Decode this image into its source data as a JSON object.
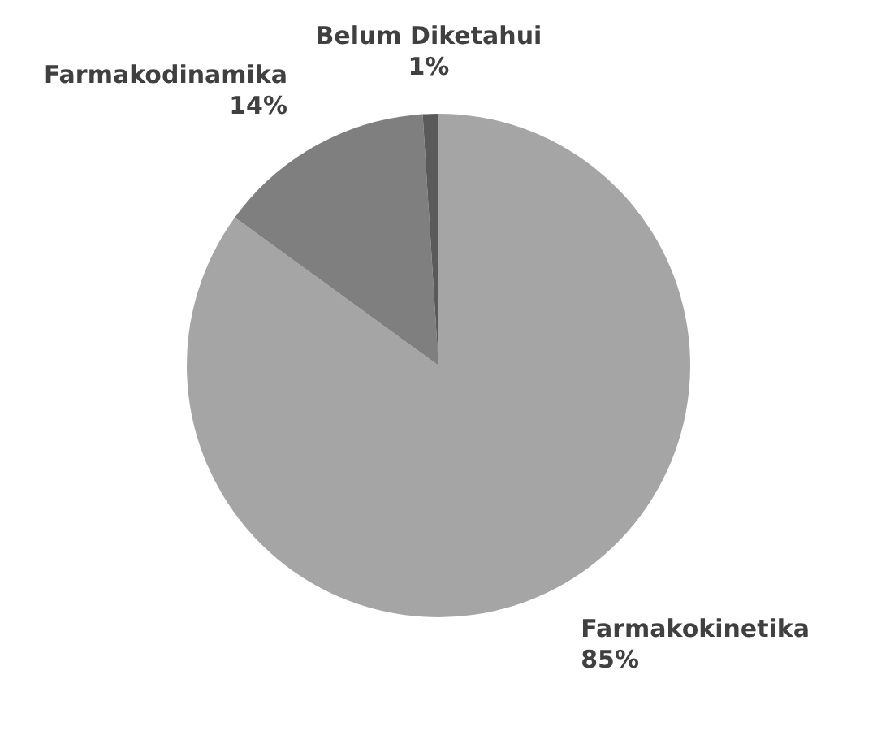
{
  "chart_data": {
    "type": "pie",
    "categories": [
      "Farmakokinetika",
      "Farmakodinamika",
      "Belum Diketahui"
    ],
    "values": [
      85,
      14,
      1
    ],
    "colors": [
      "#a5a5a5",
      "#7f7f7f",
      "#5a5a5a"
    ],
    "value_labels": [
      "85%",
      "14%",
      "1%"
    ],
    "legend": false
  }
}
